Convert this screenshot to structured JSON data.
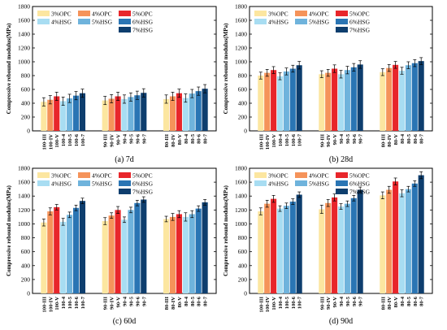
{
  "chart_data": {
    "type": "bar",
    "categories": [
      "100-III",
      "100-IV",
      "100-V",
      "100-4",
      "100-5",
      "100-6",
      "100-7",
      "90-III",
      "90-IV",
      "90-V",
      "90-4",
      "90-5",
      "90-6",
      "90-7",
      "80-III",
      "80-IV",
      "80-V",
      "80-4",
      "80-5",
      "80-6",
      "80-7"
    ],
    "legend": [
      "3%OPC",
      "4%OPC",
      "5%OPC",
      "4%HSG",
      "5%HSG",
      "6%HSG",
      "7%HSG"
    ],
    "colors": [
      "#FCE6A0",
      "#F5935A",
      "#E8262B",
      "#A8DDF2",
      "#6FB3DC",
      "#2A75B4",
      "#0E3E6E"
    ],
    "ylabel": "Compressive rebound modulus(MPa)",
    "ylim": [
      0,
      1800
    ],
    "yticks": [
      0,
      200,
      400,
      600,
      800,
      1000,
      1200,
      1400,
      1600,
      1800
    ],
    "panels": [
      {
        "caption": "(a) 7d",
        "values": [
          420,
          450,
          500,
          430,
          470,
          510,
          545,
          440,
          465,
          500,
          460,
          490,
          515,
          550,
          460,
          500,
          545,
          475,
          540,
          575,
          610
        ],
        "errors": [
          60,
          60,
          60,
          60,
          60,
          60,
          60,
          60,
          60,
          60,
          60,
          60,
          60,
          60,
          60,
          60,
          60,
          60,
          60,
          60,
          60
        ]
      },
      {
        "caption": "(b) 28d",
        "values": [
          800,
          840,
          880,
          790,
          860,
          900,
          950,
          820,
          840,
          900,
          820,
          880,
          920,
          960,
          850,
          910,
          955,
          870,
          950,
          980,
          1010
        ],
        "errors": [
          50,
          50,
          50,
          50,
          50,
          50,
          55,
          50,
          50,
          55,
          55,
          55,
          55,
          55,
          50,
          50,
          50,
          50,
          50,
          50,
          50
        ]
      },
      {
        "caption": "(c) 60d",
        "values": [
          1020,
          1180,
          1240,
          1030,
          1130,
          1230,
          1330,
          1040,
          1120,
          1200,
          1060,
          1200,
          1300,
          1350,
          1070,
          1100,
          1140,
          1100,
          1140,
          1220,
          1310
        ],
        "errors": [
          50,
          50,
          40,
          50,
          40,
          40,
          40,
          50,
          40,
          50,
          40,
          40,
          40,
          40,
          40,
          50,
          50,
          60,
          50,
          40,
          40
        ]
      },
      {
        "caption": "(d) 90d",
        "values": [
          1180,
          1290,
          1360,
          1220,
          1260,
          1320,
          1420,
          1210,
          1300,
          1380,
          1250,
          1290,
          1370,
          1490,
          1410,
          1490,
          1610,
          1440,
          1500,
          1580,
          1700
        ],
        "errors": [
          50,
          50,
          50,
          40,
          40,
          40,
          40,
          60,
          50,
          50,
          40,
          40,
          40,
          40,
          50,
          50,
          50,
          50,
          40,
          40,
          50
        ]
      }
    ]
  }
}
